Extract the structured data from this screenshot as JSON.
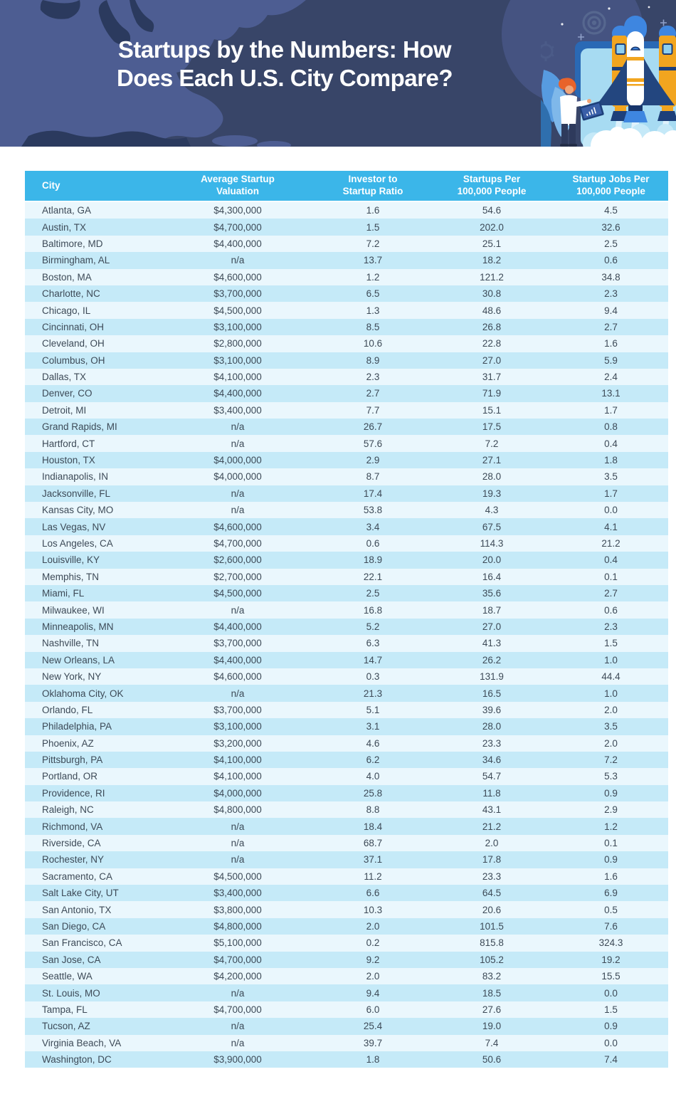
{
  "header": {
    "title_line1": "Startups by the Numbers: How",
    "title_line2": "Does Each U.S. City Compare?"
  },
  "colors": {
    "banner_bg": "#384568",
    "map_fill": "#4d5d92",
    "map_dark": "#2b3a5e",
    "header_row_bg": "#3bb6e9",
    "row_light": "#eaf7fd",
    "row_blue": "#c5eaf8",
    "cell_text": "#3d4a57",
    "accent_orange": "#f2a51f",
    "rocket_blue": "#3e86e0",
    "rocket_navy": "#1d3f7a"
  },
  "illustration": {
    "icons": [
      "us-map-silhouette",
      "target-icon",
      "gear-icon",
      "sparkle-icon",
      "star-dots",
      "plant-leaves",
      "browser-panel",
      "rocket-illustration",
      "person-with-laptop",
      "laptop-chart-icon",
      "smoke-clouds"
    ]
  },
  "table": {
    "columns": [
      {
        "id": "city",
        "label": "City"
      },
      {
        "id": "avg-valuation",
        "label": "Average Startup\nValuation"
      },
      {
        "id": "investor-ratio",
        "label": "Investor to\nStartup Ratio"
      },
      {
        "id": "startups-per-100k",
        "label": "Startups Per\n100,000 People"
      },
      {
        "id": "jobs-per-100k",
        "label": "Startup Jobs Per\n100,000 People"
      }
    ]
  },
  "chart_data": {
    "type": "table",
    "title": "Startups by the Numbers: How Does Each U.S. City Compare?",
    "columns": [
      "City",
      "Average Startup Valuation",
      "Investor to Startup Ratio",
      "Startups Per 100,000 People",
      "Startup Jobs Per 100,000 People"
    ],
    "rows": [
      [
        "Atlanta, GA",
        "$4,300,000",
        "1.6",
        "54.6",
        "4.5"
      ],
      [
        "Austin, TX",
        "$4,700,000",
        "1.5",
        "202.0",
        "32.6"
      ],
      [
        "Baltimore, MD",
        "$4,400,000",
        "7.2",
        "25.1",
        "2.5"
      ],
      [
        "Birmingham, AL",
        "n/a",
        "13.7",
        "18.2",
        "0.6"
      ],
      [
        "Boston, MA",
        "$4,600,000",
        "1.2",
        "121.2",
        "34.8"
      ],
      [
        "Charlotte, NC",
        "$3,700,000",
        "6.5",
        "30.8",
        "2.3"
      ],
      [
        "Chicago, IL",
        "$4,500,000",
        "1.3",
        "48.6",
        "9.4"
      ],
      [
        "Cincinnati, OH",
        "$3,100,000",
        "8.5",
        "26.8",
        "2.7"
      ],
      [
        "Cleveland, OH",
        "$2,800,000",
        "10.6",
        "22.8",
        "1.6"
      ],
      [
        "Columbus, OH",
        "$3,100,000",
        "8.9",
        "27.0",
        "5.9"
      ],
      [
        "Dallas, TX",
        "$4,100,000",
        "2.3",
        "31.7",
        "2.4"
      ],
      [
        "Denver, CO",
        "$4,400,000",
        "2.7",
        "71.9",
        "13.1"
      ],
      [
        "Detroit, MI",
        "$3,400,000",
        "7.7",
        "15.1",
        "1.7"
      ],
      [
        "Grand Rapids, MI",
        "n/a",
        "26.7",
        "17.5",
        "0.8"
      ],
      [
        "Hartford, CT",
        "n/a",
        "57.6",
        "7.2",
        "0.4"
      ],
      [
        "Houston, TX",
        "$4,000,000",
        "2.9",
        "27.1",
        "1.8"
      ],
      [
        "Indianapolis, IN",
        "$4,000,000",
        "8.7",
        "28.0",
        "3.5"
      ],
      [
        "Jacksonville, FL",
        "n/a",
        "17.4",
        "19.3",
        "1.7"
      ],
      [
        "Kansas City, MO",
        "n/a",
        "53.8",
        "4.3",
        "0.0"
      ],
      [
        "Las Vegas, NV",
        "$4,600,000",
        "3.4",
        "67.5",
        "4.1"
      ],
      [
        "Los Angeles, CA",
        "$4,700,000",
        "0.6",
        "114.3",
        "21.2"
      ],
      [
        "Louisville, KY",
        "$2,600,000",
        "18.9",
        "20.0",
        "0.4"
      ],
      [
        "Memphis, TN",
        "$2,700,000",
        "22.1",
        "16.4",
        "0.1"
      ],
      [
        "Miami, FL",
        "$4,500,000",
        "2.5",
        "35.6",
        "2.7"
      ],
      [
        "Milwaukee, WI",
        "n/a",
        "16.8",
        "18.7",
        "0.6"
      ],
      [
        "Minneapolis, MN",
        "$4,400,000",
        "5.2",
        "27.0",
        "2.3"
      ],
      [
        "Nashville, TN",
        "$3,700,000",
        "6.3",
        "41.3",
        "1.5"
      ],
      [
        "New Orleans, LA",
        "$4,400,000",
        "14.7",
        "26.2",
        "1.0"
      ],
      [
        "New York, NY",
        "$4,600,000",
        "0.3",
        "131.9",
        "44.4"
      ],
      [
        "Oklahoma City, OK",
        "n/a",
        "21.3",
        "16.5",
        "1.0"
      ],
      [
        "Orlando, FL",
        "$3,700,000",
        "5.1",
        "39.6",
        "2.0"
      ],
      [
        "Philadelphia, PA",
        "$3,100,000",
        "3.1",
        "28.0",
        "3.5"
      ],
      [
        "Phoenix, AZ",
        "$3,200,000",
        "4.6",
        "23.3",
        "2.0"
      ],
      [
        "Pittsburgh, PA",
        "$4,100,000",
        "6.2",
        "34.6",
        "7.2"
      ],
      [
        "Portland, OR",
        "$4,100,000",
        "4.0",
        "54.7",
        "5.3"
      ],
      [
        "Providence, RI",
        "$4,000,000",
        "25.8",
        "11.8",
        "0.9"
      ],
      [
        "Raleigh, NC",
        "$4,800,000",
        "8.8",
        "43.1",
        "2.9"
      ],
      [
        "Richmond, VA",
        "n/a",
        "18.4",
        "21.2",
        "1.2"
      ],
      [
        "Riverside, CA",
        "n/a",
        "68.7",
        "2.0",
        "0.1"
      ],
      [
        "Rochester, NY",
        "n/a",
        "37.1",
        "17.8",
        "0.9"
      ],
      [
        "Sacramento, CA",
        "$4,500,000",
        "11.2",
        "23.3",
        "1.6"
      ],
      [
        "Salt Lake City, UT",
        "$3,400,000",
        "6.6",
        "64.5",
        "6.9"
      ],
      [
        "San Antonio, TX",
        "$3,800,000",
        "10.3",
        "20.6",
        "0.5"
      ],
      [
        "San Diego, CA",
        "$4,800,000",
        "2.0",
        "101.5",
        "7.6"
      ],
      [
        "San Francisco, CA",
        "$5,100,000",
        "0.2",
        "815.8",
        "324.3"
      ],
      [
        "San Jose, CA",
        "$4,700,000",
        "9.2",
        "105.2",
        "19.2"
      ],
      [
        "Seattle, WA",
        "$4,200,000",
        "2.0",
        "83.2",
        "15.5"
      ],
      [
        "St. Louis, MO",
        "n/a",
        "9.4",
        "18.5",
        "0.0"
      ],
      [
        "Tampa, FL",
        "$4,700,000",
        "6.0",
        "27.6",
        "1.5"
      ],
      [
        "Tucson, AZ",
        "n/a",
        "25.4",
        "19.0",
        "0.9"
      ],
      [
        "Virginia Beach, VA",
        "n/a",
        "39.7",
        "7.4",
        "0.0"
      ],
      [
        "Washington, DC",
        "$3,900,000",
        "1.8",
        "50.6",
        "7.4"
      ]
    ]
  }
}
